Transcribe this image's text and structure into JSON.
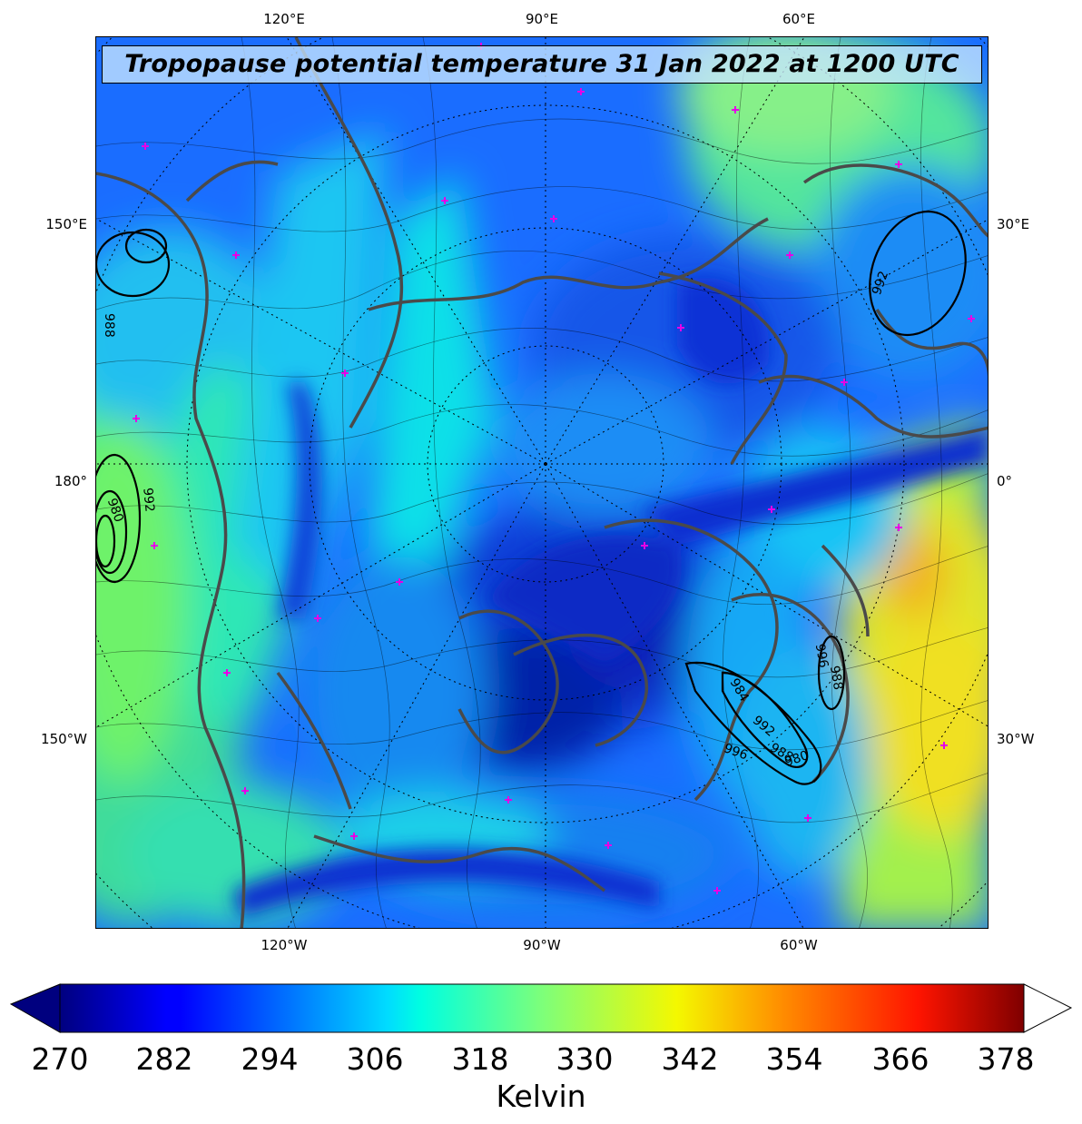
{
  "title": "Tropopause potential temperature 31 Jan 2022 at 1200 UTC",
  "axes": {
    "top": [
      "120°E",
      "90°E",
      "60°E"
    ],
    "bottom": [
      "120°W",
      "90°W",
      "60°W"
    ],
    "left": [
      "150°E",
      "180°",
      "150°W"
    ],
    "right": [
      "30°E",
      "0°",
      "30°W"
    ]
  },
  "contour_labels": [
    "992",
    "988",
    "980",
    "992",
    "984",
    "996",
    "992",
    "988",
    "980",
    "996",
    "988"
  ],
  "colorbar": {
    "ticks": [
      "270",
      "282",
      "294",
      "306",
      "318",
      "330",
      "342",
      "354",
      "366",
      "378"
    ],
    "label": "Kelvin",
    "range": [
      270,
      381
    ],
    "extend": "both",
    "colormap": "jet",
    "over_color": "#ffffff",
    "under_color": "#00007f"
  },
  "colors": {
    "coastline": "#4a4a4a",
    "station_marker": "#e600e6",
    "graticule": "#000000"
  }
}
